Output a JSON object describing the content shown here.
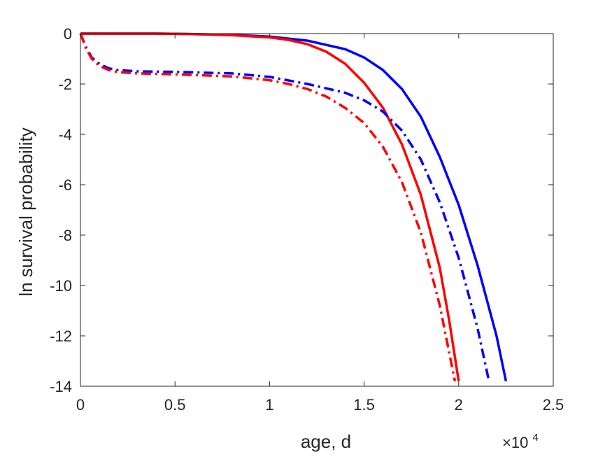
{
  "chart_data": {
    "type": "line",
    "title": "",
    "xlabel": "age, d",
    "ylabel": "ln survival probability",
    "x_exponent_label": "×10",
    "x_exponent_power": "4",
    "xlim": [
      0,
      25000
    ],
    "ylim": [
      -14,
      0
    ],
    "x_ticks": [
      0,
      5000,
      10000,
      15000,
      20000,
      25000
    ],
    "x_tick_labels": [
      "0",
      "0.5",
      "1",
      "1.5",
      "2",
      "2.5"
    ],
    "y_ticks": [
      0,
      -2,
      -4,
      -6,
      -8,
      -10,
      -12,
      -14
    ],
    "y_tick_labels": [
      "0",
      "-2",
      "-4",
      "-6",
      "-8",
      "-10",
      "-12",
      "-14"
    ],
    "grid": false,
    "series": [
      {
        "color": "#0000ff",
        "style": "solid",
        "x": [
          0,
          2000,
          4000,
          6000,
          8000,
          10000,
          12000,
          14000,
          15000,
          16000,
          17000,
          18000,
          19000,
          20000,
          21000,
          22000,
          22500
        ],
        "y": [
          0,
          0,
          0,
          -0.02,
          -0.05,
          -0.12,
          -0.28,
          -0.62,
          -0.95,
          -1.45,
          -2.2,
          -3.3,
          -4.9,
          -6.8,
          -9.2,
          -12.0,
          -13.8
        ]
      },
      {
        "color": "#ff0000",
        "style": "solid",
        "x": [
          0,
          2000,
          4000,
          6000,
          8000,
          10000,
          11000,
          12000,
          13000,
          14000,
          15000,
          16000,
          17000,
          18000,
          19000,
          19500,
          20000
        ],
        "y": [
          0,
          0,
          0,
          -0.02,
          -0.06,
          -0.15,
          -0.25,
          -0.42,
          -0.72,
          -1.2,
          -1.95,
          -2.95,
          -4.4,
          -6.4,
          -9.3,
          -11.4,
          -13.8
        ]
      },
      {
        "color": "#0000ff",
        "style": "dashdot",
        "x": [
          0,
          300,
          600,
          1000,
          1500,
          2000,
          3000,
          5000,
          8000,
          10000,
          12000,
          14000,
          15000,
          16000,
          17000,
          18000,
          19000,
          20000,
          21000,
          21600
        ],
        "y": [
          0,
          -0.55,
          -0.95,
          -1.2,
          -1.38,
          -1.45,
          -1.5,
          -1.52,
          -1.58,
          -1.72,
          -2.0,
          -2.35,
          -2.65,
          -3.1,
          -3.85,
          -5.0,
          -6.7,
          -8.9,
          -11.7,
          -13.8
        ]
      },
      {
        "color": "#ff0000",
        "style": "dashdot",
        "x": [
          0,
          300,
          600,
          1000,
          1500,
          2000,
          3000,
          5000,
          8000,
          10000,
          11000,
          12000,
          13000,
          14000,
          15000,
          16000,
          17000,
          18000,
          19000,
          19800
        ],
        "y": [
          0,
          -0.6,
          -1.0,
          -1.28,
          -1.45,
          -1.53,
          -1.58,
          -1.62,
          -1.7,
          -1.85,
          -2.0,
          -2.2,
          -2.5,
          -2.95,
          -3.55,
          -4.5,
          -5.9,
          -7.9,
          -10.8,
          -13.8
        ]
      }
    ]
  }
}
